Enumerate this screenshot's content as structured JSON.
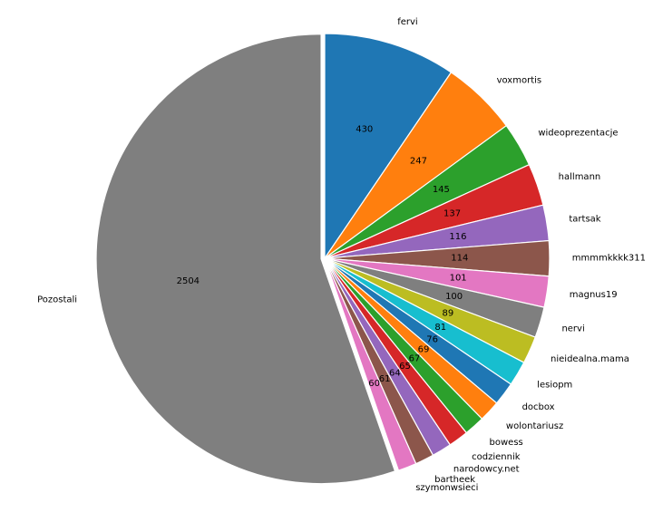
{
  "chart_data": {
    "type": "pie",
    "title": "",
    "start": "top",
    "direction": "clockwise",
    "categories": [
      "fervi",
      "voxmortis",
      "wideoprezentacje",
      "hallmann",
      "tartsak",
      "mmmmkkkk311",
      "magnus19",
      "nervi",
      "nieidealna.mama",
      "lesiopm",
      "docbox",
      "wolontariusz",
      "bowess",
      "codziennik",
      "narodowcy.net",
      "bartheek",
      "szymonwsieci",
      "Pozostali"
    ],
    "values": [
      430,
      247,
      145,
      137,
      116,
      114,
      101,
      100,
      89,
      81,
      76,
      69,
      67,
      65,
      64,
      61,
      60,
      2504
    ],
    "value_labels": [
      "430",
      "247",
      "145",
      "137",
      "116",
      "114",
      "101",
      "100",
      "89",
      "81",
      "76",
      "69",
      "67",
      "65",
      "64",
      "61",
      "60",
      "2504"
    ],
    "exploded": "Pozostali",
    "colors": [
      "#1f77b4",
      "#ff7f0e",
      "#2ca02c",
      "#d62728",
      "#9467bd",
      "#8c564b",
      "#e377c2",
      "#7f7f7f",
      "#bcbd22",
      "#17becf",
      "#1f77b4",
      "#ff7f0e",
      "#2ca02c",
      "#d62728",
      "#9467bd",
      "#8c564b",
      "#e377c2",
      "#7f7f7f"
    ]
  }
}
